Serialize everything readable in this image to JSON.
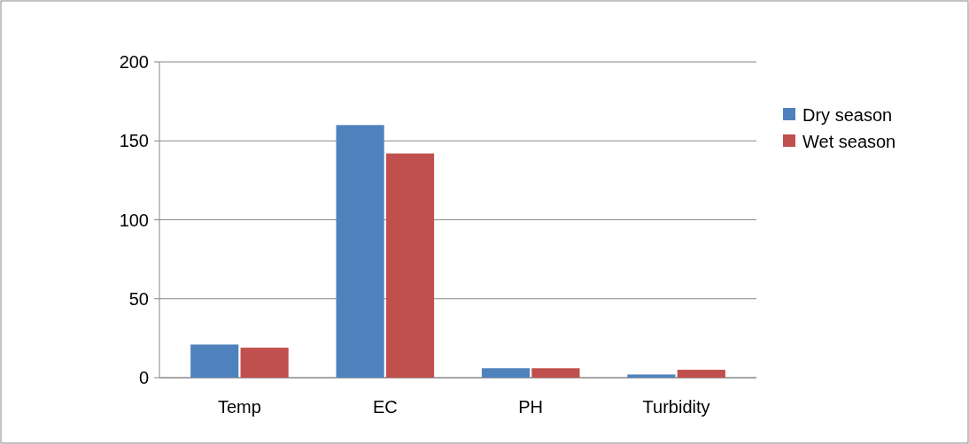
{
  "chart_data": {
    "type": "bar",
    "categories": [
      "Temp",
      "EC",
      "PH",
      "Turbidity"
    ],
    "series": [
      {
        "name": "Dry season",
        "color": "#4f81bd",
        "values": [
          21,
          160,
          6,
          2
        ]
      },
      {
        "name": "Wet season",
        "color": "#c0504d",
        "values": [
          19,
          142,
          6,
          5
        ]
      }
    ],
    "ylim": [
      0,
      200
    ],
    "yticks": [
      0,
      50,
      100,
      150,
      200
    ],
    "grid": "y",
    "legend": "right"
  }
}
